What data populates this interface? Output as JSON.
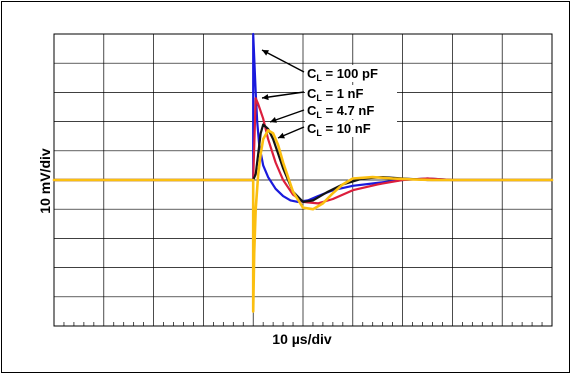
{
  "chart_data": {
    "type": "line",
    "title": "",
    "xlabel": "10 µs/div",
    "ylabel": "10 mV/div",
    "grid": true,
    "x_divisions": 10,
    "y_divisions": 10,
    "xlim": [
      -4,
      6
    ],
    "ylim": [
      -5,
      5
    ],
    "annotations": [
      {
        "prefix": "C",
        "subscript": "L",
        "text": " = 100 pF",
        "series": 0
      },
      {
        "prefix": "C",
        "subscript": "L",
        "text": " = 1 nF",
        "series": 1
      },
      {
        "prefix": "C",
        "subscript": "L",
        "text": " = 4.7 nF",
        "series": 2
      },
      {
        "prefix": "C",
        "subscript": "L",
        "text": " = 10 nF",
        "series": 3
      }
    ],
    "series": [
      {
        "color": "#1a1adc",
        "x": [
          -4,
          -0.02,
          0.0,
          0.0,
          0.02,
          0.05,
          0.08,
          0.12,
          0.2,
          0.3,
          0.45,
          0.6,
          0.75,
          0.9,
          1.1,
          1.3,
          1.6,
          2.0,
          2.5,
          3.0,
          3.5,
          4.0,
          5.0,
          6.0
        ],
        "y": [
          0,
          0,
          0,
          5.0,
          4.2,
          3.0,
          2.0,
          1.2,
          0.5,
          0.1,
          -0.3,
          -0.55,
          -0.7,
          -0.75,
          -0.7,
          -0.55,
          -0.35,
          -0.2,
          -0.1,
          0,
          0.05,
          0,
          0,
          0
        ]
      },
      {
        "color": "#dc1e3c",
        "x": [
          -4,
          -0.02,
          0.0,
          0.05,
          0.1,
          0.2,
          0.3,
          0.45,
          0.6,
          0.8,
          1.0,
          1.3,
          1.6,
          2.0,
          2.5,
          3.0,
          3.5,
          4.0,
          5.0,
          6.0
        ],
        "y": [
          0,
          0,
          0,
          2.8,
          2.6,
          2.1,
          1.4,
          0.6,
          0,
          -0.5,
          -0.75,
          -0.8,
          -0.65,
          -0.35,
          -0.15,
          0,
          0.05,
          0,
          0,
          0
        ]
      },
      {
        "color": "#141414",
        "x": [
          -4,
          -0.02,
          0.0,
          0.05,
          0.1,
          0.15,
          0.2,
          0.3,
          0.4,
          0.5,
          0.6,
          0.8,
          1.0,
          1.2,
          1.5,
          1.8,
          2.2,
          2.6,
          3.0,
          3.5,
          4.0,
          5.0,
          6.0
        ],
        "y": [
          0,
          0,
          0,
          0.2,
          0.9,
          1.6,
          1.9,
          1.75,
          1.4,
          0.9,
          0.4,
          -0.4,
          -0.75,
          -0.7,
          -0.4,
          -0.15,
          0.05,
          0.1,
          0.05,
          0,
          0,
          0,
          0
        ]
      },
      {
        "color": "#fbbf10",
        "x": [
          -4,
          -0.02,
          0.0,
          0.0,
          0.02,
          0.05,
          0.1,
          0.15,
          0.2,
          0.3,
          0.4,
          0.5,
          0.6,
          0.8,
          1.0,
          1.2,
          1.4,
          1.6,
          1.8,
          2.0,
          2.4,
          2.8,
          3.2,
          3.6,
          4.0,
          4.5,
          5.0,
          5.5,
          6.0
        ],
        "y": [
          0,
          0,
          0,
          -4.5,
          -2.5,
          -1.0,
          0.2,
          0.9,
          1.4,
          1.7,
          1.6,
          1.2,
          0.6,
          -0.4,
          -0.95,
          -1.0,
          -0.8,
          -0.45,
          -0.15,
          0.05,
          0.1,
          0.05,
          0.02,
          0,
          0,
          0,
          0,
          0,
          0
        ]
      }
    ]
  }
}
